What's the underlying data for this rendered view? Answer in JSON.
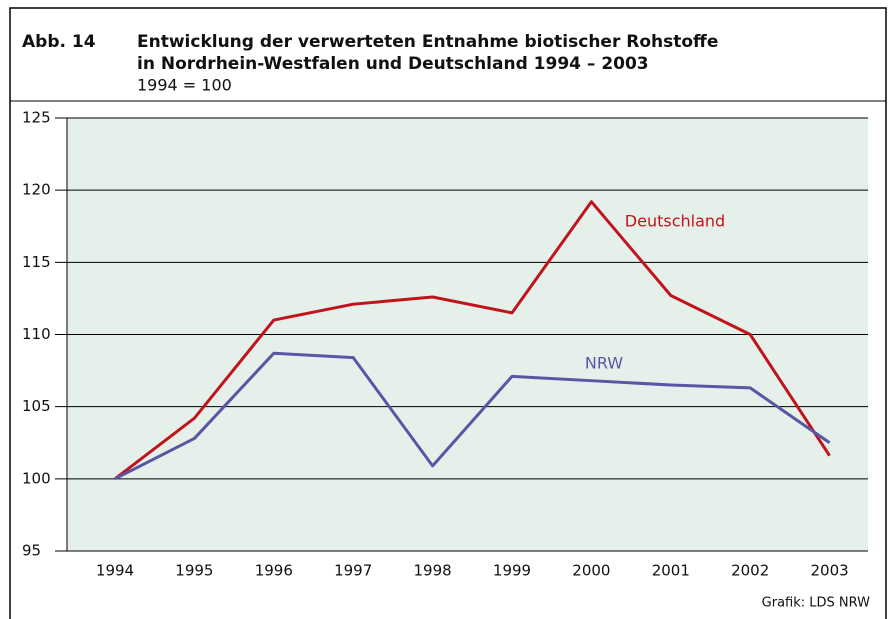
{
  "chart_data": {
    "type": "line",
    "figure_label": "Abb. 14",
    "title": [
      "Entwicklung der verwerteten Entnahme biotischer Rohstoffe",
      "in Nordrhein-Westfalen und Deutschland 1994 – 2003"
    ],
    "subtitle": "1994 = 100",
    "categories": [
      "1994",
      "1995",
      "1996",
      "1997",
      "1998",
      "1999",
      "2000",
      "2001",
      "2002",
      "2003"
    ],
    "series": [
      {
        "name": "Deutschland",
        "color": "#c0141c",
        "values": [
          100,
          104.2,
          111.0,
          112.1,
          112.6,
          111.5,
          119.2,
          112.7,
          110.0,
          101.6
        ]
      },
      {
        "name": "NRW",
        "color": "#5a55a5",
        "values": [
          100,
          102.8,
          108.7,
          108.4,
          100.9,
          107.1,
          106.8,
          106.5,
          106.3,
          102.5
        ]
      }
    ],
    "ylim": [
      95,
      125
    ],
    "yticks": [
      95,
      100,
      105,
      110,
      115,
      120,
      125
    ],
    "grid": true,
    "source": "Grafik: LDS NRW"
  }
}
